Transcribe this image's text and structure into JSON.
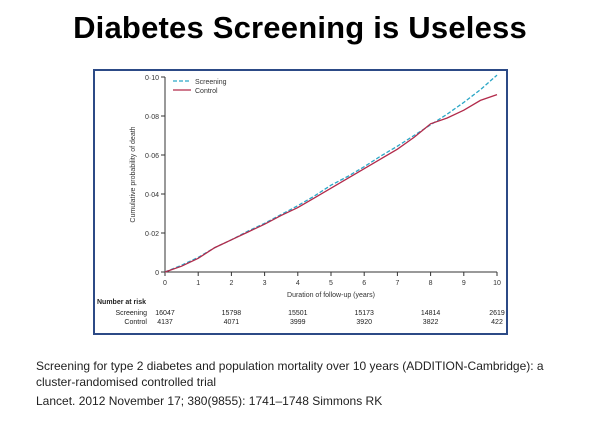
{
  "slide": {
    "title": "Diabetes Screening is Useless",
    "citation_title": "Screening for type 2 diabetes and population mortality over 10 years (ADDITION-Cambridge): a cluster-randomised controlled trial",
    "citation_ref": "Lancet. 2012 November 17; 380(9855): 1741–1748 Simmons RK"
  },
  "chart_data": {
    "type": "line",
    "title": "",
    "xlabel": "Duration of follow-up (years)",
    "ylabel": "Cumulative probability of death",
    "xlim": [
      0,
      10
    ],
    "ylim": [
      0,
      0.1
    ],
    "x_ticks": [
      "0",
      "1",
      "2",
      "3",
      "4",
      "5",
      "6",
      "7",
      "8",
      "9",
      "10"
    ],
    "y_ticks": [
      "0",
      "0·02",
      "0·04",
      "0·06",
      "0·08",
      "0·10"
    ],
    "y_tick_values": [
      0,
      0.02,
      0.04,
      0.06,
      0.08,
      0.1
    ],
    "legend_position": "top-left",
    "series": [
      {
        "name": "Screening",
        "color": "#2aa6c6",
        "dash": true,
        "x": [
          0,
          0.5,
          1,
          1.5,
          2,
          2.5,
          3,
          3.5,
          4,
          4.5,
          5,
          5.5,
          6,
          6.5,
          7,
          7.5,
          8,
          8.5,
          9,
          9.5,
          10
        ],
        "y": [
          0,
          0.0035,
          0.0075,
          0.0125,
          0.0165,
          0.021,
          0.025,
          0.0295,
          0.034,
          0.039,
          0.0445,
          0.049,
          0.054,
          0.0595,
          0.0645,
          0.07,
          0.0755,
          0.081,
          0.087,
          0.0935,
          0.101
        ]
      },
      {
        "name": "Control",
        "color": "#b22a4a",
        "dash": false,
        "x": [
          0,
          0.5,
          1,
          1.5,
          2,
          2.5,
          3,
          3.5,
          4,
          4.5,
          5,
          5.5,
          6,
          6.5,
          7,
          7.5,
          8,
          8.5,
          9,
          9.5,
          10
        ],
        "y": [
          0,
          0.003,
          0.007,
          0.0125,
          0.0165,
          0.0205,
          0.0245,
          0.029,
          0.033,
          0.038,
          0.043,
          0.048,
          0.053,
          0.058,
          0.063,
          0.069,
          0.076,
          0.079,
          0.083,
          0.088,
          0.091
        ]
      }
    ],
    "risk_table": {
      "header": "Number at risk",
      "rows": [
        {
          "label": "Screening",
          "entries": [
            {
              "x": 0,
              "value": "16047"
            },
            {
              "x": 2,
              "value": "15798"
            },
            {
              "x": 4,
              "value": "15501"
            },
            {
              "x": 6,
              "value": "15173"
            },
            {
              "x": 8,
              "value": "14814"
            },
            {
              "x": 10,
              "value": "2619"
            }
          ]
        },
        {
          "label": "Control",
          "entries": [
            {
              "x": 0,
              "value": "4137"
            },
            {
              "x": 2,
              "value": "4071"
            },
            {
              "x": 4,
              "value": "3999"
            },
            {
              "x": 6,
              "value": "3920"
            },
            {
              "x": 8,
              "value": "3822"
            },
            {
              "x": 10,
              "value": "422"
            }
          ]
        }
      ]
    }
  }
}
